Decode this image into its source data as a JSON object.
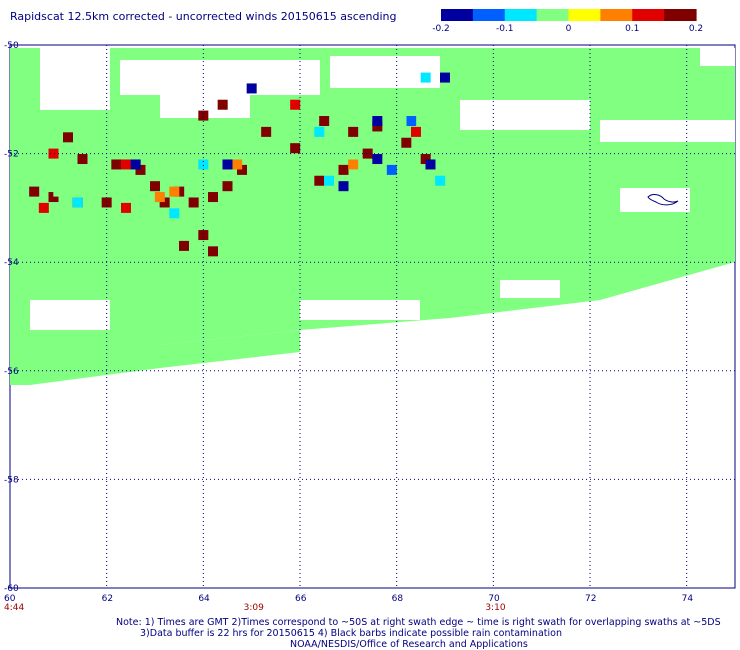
{
  "chart_data": {
    "type": "heatmap",
    "title": "Rapidscat 12.5km corrected - uncorrected winds 20150615 ascending",
    "colorbar": {
      "range": [
        -0.2,
        0.2
      ],
      "tick_labels": [
        "-0.2",
        "-0.1",
        "0",
        "0.1",
        "0.2"
      ],
      "tick_values": [
        -0.2,
        -0.1,
        0,
        0.1,
        0.2
      ],
      "colors": [
        "#0000a0",
        "#0060ff",
        "#00e8ff",
        "#80ff80",
        "#ffff00",
        "#ff8000",
        "#e00000",
        "#800000"
      ]
    },
    "x_axis": {
      "range": [
        60,
        75
      ],
      "tick_values": [
        60,
        62,
        64,
        66,
        68,
        70,
        72,
        74
      ],
      "tick_labels": [
        "60",
        "62",
        "64",
        "66",
        "68",
        "70",
        "72",
        "74"
      ]
    },
    "y_axis": {
      "range": [
        -60,
        -50
      ],
      "tick_values": [
        -50,
        -52,
        -54,
        -56,
        -58,
        -60
      ],
      "tick_labels": [
        "-50",
        "-52",
        "-54",
        "-56",
        "-58",
        "-60"
      ]
    },
    "grid": "dotted",
    "time_labels": [
      {
        "x": 60,
        "text": "4:44"
      },
      {
        "x": 65,
        "text": "3:09"
      },
      {
        "x": 70,
        "text": "3:10"
      }
    ],
    "swath_fill_color": "#80ff80",
    "coastline_color": "#000080",
    "cells": [
      {
        "lon": 61.2,
        "lat": -51.7,
        "v": 0.2
      },
      {
        "lon": 61.5,
        "lat": -52.1,
        "v": 0.2
      },
      {
        "lon": 60.5,
        "lat": -52.7,
        "v": 0.2
      },
      {
        "lon": 60.9,
        "lat": -52.8,
        "v": 0.2
      },
      {
        "lon": 61.4,
        "lat": -52.9,
        "v": 0.2
      },
      {
        "lon": 60.7,
        "lat": -53.0,
        "v": 0.1
      },
      {
        "lon": 62.2,
        "lat": -52.2,
        "v": 0.2
      },
      {
        "lon": 62.0,
        "lat": -52.9,
        "v": 0.2
      },
      {
        "lon": 62.7,
        "lat": -52.3,
        "v": 0.2
      },
      {
        "lon": 63.0,
        "lat": -52.6,
        "v": 0.2
      },
      {
        "lon": 63.2,
        "lat": -52.9,
        "v": 0.2
      },
      {
        "lon": 63.5,
        "lat": -52.7,
        "v": 0.2
      },
      {
        "lon": 63.8,
        "lat": -52.9,
        "v": 0.2
      },
      {
        "lon": 64.2,
        "lat": -52.8,
        "v": 0.2
      },
      {
        "lon": 64.5,
        "lat": -52.6,
        "v": 0.2
      },
      {
        "lon": 64.8,
        "lat": -52.3,
        "v": 0.2
      },
      {
        "lon": 64.0,
        "lat": -51.3,
        "v": 0.2
      },
      {
        "lon": 64.4,
        "lat": -51.1,
        "v": 0.2
      },
      {
        "lon": 65.3,
        "lat": -51.6,
        "v": 0.2
      },
      {
        "lon": 65.9,
        "lat": -51.9,
        "v": 0.2
      },
      {
        "lon": 66.5,
        "lat": -51.4,
        "v": 0.2
      },
      {
        "lon": 67.1,
        "lat": -51.6,
        "v": 0.2
      },
      {
        "lon": 67.6,
        "lat": -51.5,
        "v": 0.2
      },
      {
        "lon": 67.4,
        "lat": -52.0,
        "v": 0.2
      },
      {
        "lon": 66.9,
        "lat": -52.3,
        "v": 0.2
      },
      {
        "lon": 66.4,
        "lat": -52.5,
        "v": 0.2
      },
      {
        "lon": 68.2,
        "lat": -51.8,
        "v": 0.2
      },
      {
        "lon": 68.6,
        "lat": -52.1,
        "v": 0.2
      },
      {
        "lon": 64.2,
        "lat": -53.8,
        "v": 0.2
      },
      {
        "lon": 64.0,
        "lat": -53.5,
        "v": 0.2
      },
      {
        "lon": 63.6,
        "lat": -53.7,
        "v": 0.2
      },
      {
        "lon": 65.9,
        "lat": -51.1,
        "v": 0.1
      },
      {
        "lon": 62.4,
        "lat": -52.2,
        "v": 0.1
      },
      {
        "lon": 60.9,
        "lat": -52.0,
        "v": 0.1
      },
      {
        "lon": 68.4,
        "lat": -51.6,
        "v": 0.1
      },
      {
        "lon": 62.4,
        "lat": -53.0,
        "v": 0.1
      },
      {
        "lon": 63.1,
        "lat": -52.8,
        "v": 0.05
      },
      {
        "lon": 64.7,
        "lat": -52.2,
        "v": 0.05
      },
      {
        "lon": 63.4,
        "lat": -52.7,
        "v": 0.05
      },
      {
        "lon": 67.1,
        "lat": -52.2,
        "v": 0.05
      },
      {
        "lon": 61.0,
        "lat": -52.7,
        "v": -0.05
      },
      {
        "lon": 65.0,
        "lat": -50.8,
        "v": -0.2
      },
      {
        "lon": 64.5,
        "lat": -52.2,
        "v": -0.2
      },
      {
        "lon": 62.6,
        "lat": -52.2,
        "v": -0.2
      },
      {
        "lon": 66.9,
        "lat": -52.6,
        "v": -0.2
      },
      {
        "lon": 67.6,
        "lat": -52.1,
        "v": -0.2
      },
      {
        "lon": 68.7,
        "lat": -52.2,
        "v": -0.2
      },
      {
        "lon": 69.0,
        "lat": -50.6,
        "v": -0.2
      },
      {
        "lon": 67.6,
        "lat": -51.4,
        "v": -0.2
      },
      {
        "lon": 67.9,
        "lat": -52.3,
        "v": -0.15
      },
      {
        "lon": 68.3,
        "lat": -51.4,
        "v": -0.15
      },
      {
        "lon": 68.6,
        "lat": -50.6,
        "v": -0.1
      },
      {
        "lon": 68.9,
        "lat": -52.5,
        "v": -0.1
      },
      {
        "lon": 64.0,
        "lat": -52.2,
        "v": -0.1
      },
      {
        "lon": 66.4,
        "lat": -51.6,
        "v": -0.1
      },
      {
        "lon": 61.4,
        "lat": -52.9,
        "v": -0.1
      },
      {
        "lon": 63.4,
        "lat": -53.1,
        "v": -0.1
      },
      {
        "lon": 66.6,
        "lat": -52.5,
        "v": -0.1
      },
      {
        "lon": 68.1,
        "lat": -51.4,
        "v": -0.05
      },
      {
        "lon": 68.8,
        "lat": -51.4,
        "v": -0.05
      }
    ]
  },
  "notes": {
    "line1": "Note: 1) Times are GMT 2)Times correspond to ~50S at right swath edge ~ time is right swath for overlapping swaths at ~5DS",
    "line2": "3)Data buffer is 22 hrs for 20150615 4) Black barbs indicate possible rain contamination",
    "line3": "NOAA/NESDIS/Office of Research and Applications"
  }
}
